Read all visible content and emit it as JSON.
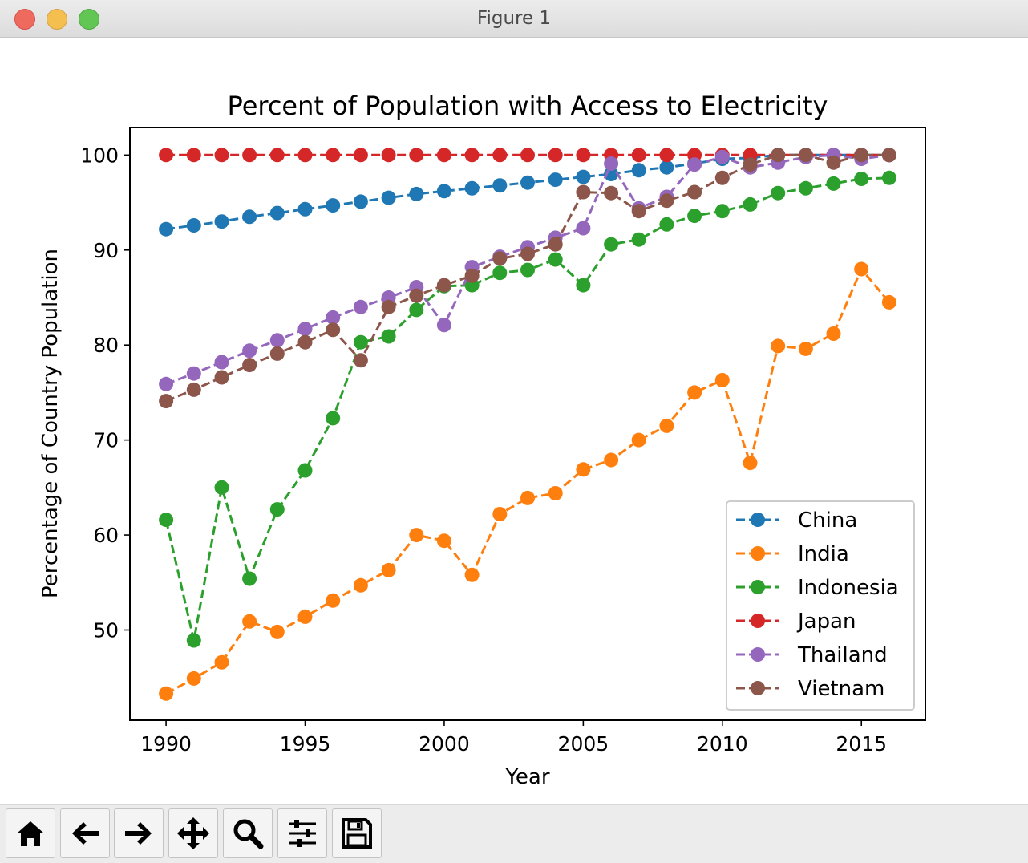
{
  "window": {
    "title": "Figure 1"
  },
  "toolbar": {
    "buttons": [
      {
        "name": "home-button",
        "icon": "home-icon"
      },
      {
        "name": "back-button",
        "icon": "arrow-left-icon"
      },
      {
        "name": "forward-button",
        "icon": "arrow-right-icon"
      },
      {
        "name": "pan-button",
        "icon": "move-icon"
      },
      {
        "name": "zoom-button",
        "icon": "magnifier-icon"
      },
      {
        "name": "configure-subplots-button",
        "icon": "sliders-icon"
      },
      {
        "name": "save-button",
        "icon": "floppy-disk-icon"
      }
    ]
  },
  "chart_data": {
    "type": "line",
    "title": "Percent of Population with Access to Electricity",
    "xlabel": "Year",
    "ylabel": "Percentage of Country Population",
    "x": [
      1990,
      1991,
      1992,
      1993,
      1994,
      1995,
      1996,
      1997,
      1998,
      1999,
      2000,
      2001,
      2002,
      2003,
      2004,
      2005,
      2006,
      2007,
      2008,
      2009,
      2010,
      2011,
      2012,
      2013,
      2014,
      2015,
      2016
    ],
    "xlim": [
      1988.7,
      2017.3
    ],
    "ylim": [
      40.5,
      102.9
    ],
    "xticks": [
      1990,
      1995,
      2000,
      2005,
      2010,
      2015
    ],
    "yticks": [
      50,
      60,
      70,
      80,
      90,
      100
    ],
    "grid": false,
    "legend_position": "lower-right",
    "series": [
      {
        "name": "China",
        "color": "#1f77b4",
        "values": [
          92.2,
          92.6,
          93.0,
          93.5,
          93.9,
          94.3,
          94.7,
          95.1,
          95.5,
          95.9,
          96.2,
          96.5,
          96.8,
          97.1,
          97.4,
          97.7,
          98.0,
          98.4,
          98.7,
          99.1,
          99.6,
          99.7,
          100,
          100,
          100,
          100,
          100
        ]
      },
      {
        "name": "India",
        "color": "#ff7f0e",
        "values": [
          43.3,
          44.9,
          46.6,
          50.9,
          49.8,
          51.4,
          53.1,
          54.7,
          56.3,
          60.0,
          59.4,
          55.8,
          62.2,
          63.9,
          64.4,
          66.9,
          67.9,
          70.0,
          71.5,
          75.0,
          76.3,
          67.6,
          79.9,
          79.6,
          81.2,
          88.0,
          84.5
        ]
      },
      {
        "name": "Indonesia",
        "color": "#2ca02c",
        "values": [
          61.6,
          48.9,
          65.0,
          55.4,
          62.7,
          66.8,
          72.3,
          80.3,
          80.9,
          83.7,
          86.2,
          86.3,
          87.6,
          87.9,
          89.0,
          86.3,
          90.6,
          91.1,
          92.7,
          93.6,
          94.1,
          94.8,
          96.0,
          96.5,
          97.0,
          97.5,
          97.6
        ]
      },
      {
        "name": "Japan",
        "color": "#d62728",
        "values": [
          100,
          100,
          100,
          100,
          100,
          100,
          100,
          100,
          100,
          100,
          100,
          100,
          100,
          100,
          100,
          100,
          100,
          100,
          100,
          100,
          100,
          100,
          100,
          100,
          100,
          100,
          100
        ]
      },
      {
        "name": "Thailand",
        "color": "#9467bd",
        "values": [
          75.9,
          77.0,
          78.2,
          79.4,
          80.5,
          81.7,
          82.9,
          84.0,
          85.0,
          86.1,
          82.1,
          88.2,
          89.3,
          90.3,
          91.3,
          92.3,
          99.1,
          94.4,
          95.6,
          99.0,
          99.8,
          98.7,
          99.2,
          99.8,
          100,
          99.6,
          100
        ]
      },
      {
        "name": "Vietnam",
        "color": "#8c564b",
        "values": [
          74.1,
          75.3,
          76.6,
          77.9,
          79.1,
          80.3,
          81.6,
          78.4,
          84.0,
          85.2,
          86.3,
          87.3,
          89.1,
          89.6,
          90.6,
          96.1,
          96.0,
          94.1,
          95.2,
          96.1,
          97.6,
          99.0,
          100,
          100,
          99.2,
          100,
          100
        ]
      }
    ]
  }
}
